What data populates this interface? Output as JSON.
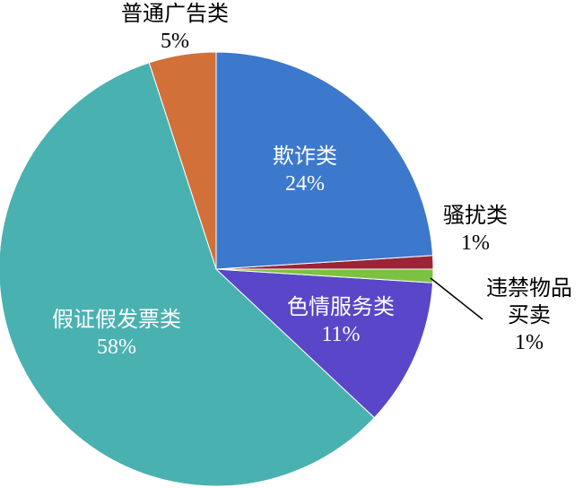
{
  "chart_data": {
    "type": "pie",
    "categories": [
      "欺诈类",
      "骚扰类",
      "违禁物品买卖",
      "色情服务类",
      "假证假发票类",
      "普通广告类"
    ],
    "values": [
      24,
      1,
      1,
      11,
      58,
      5
    ],
    "value_labels": [
      "24%",
      "1%",
      "1%",
      "11%",
      "58%",
      "5%"
    ],
    "colors": [
      "#3c78cc",
      "#9b2438",
      "#7cc242",
      "#5a46c8",
      "#4ab1b1",
      "#d2703a"
    ]
  }
}
